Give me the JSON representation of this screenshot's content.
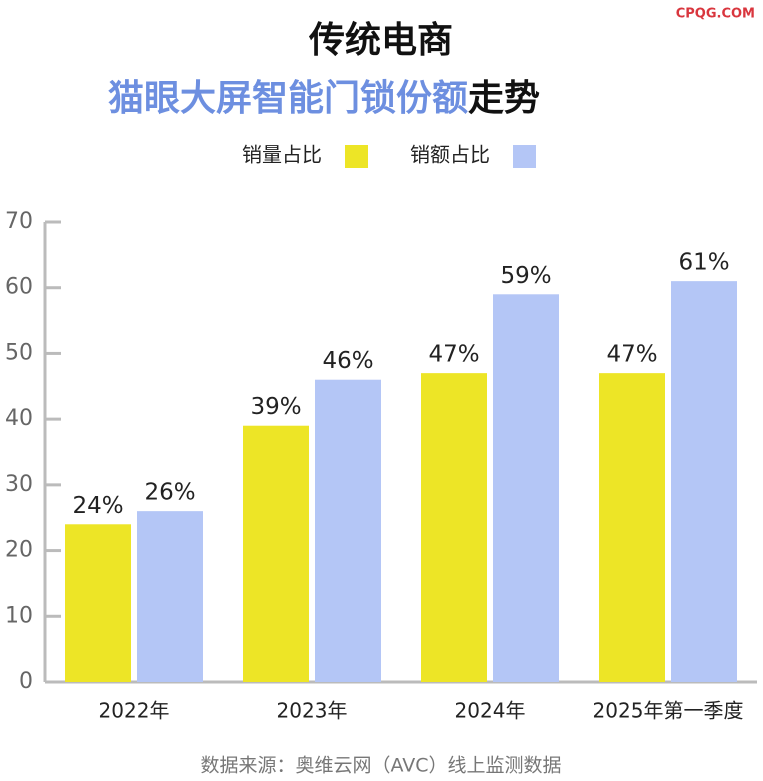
{
  "chart_data": {
    "type": "bar",
    "title": "传统电商",
    "subtitle": {
      "highlight": "猫眼大屏智能门锁份额",
      "rest": "走势"
    },
    "watermark": "CPQG.COM",
    "source": "数据来源：奥维云网（AVC）线上监测数据",
    "categories": [
      "2022年",
      "2023年",
      "2024年",
      "2025年第一季度"
    ],
    "series": [
      {
        "name": "销量占比",
        "color": "#ede526",
        "values": [
          24,
          39,
          47,
          47
        ],
        "value_labels": [
          "24%",
          "39%",
          "47%",
          "47%"
        ]
      },
      {
        "name": "销额占比",
        "color": "#b4c6f6",
        "values": [
          26,
          46,
          59,
          61
        ],
        "value_labels": [
          "26%",
          "46%",
          "59%",
          "61%"
        ]
      }
    ],
    "ylim": [
      0,
      70
    ],
    "yticks": [
      0,
      10,
      20,
      30,
      40,
      50,
      60,
      70
    ],
    "legend": "top",
    "grid": false
  }
}
